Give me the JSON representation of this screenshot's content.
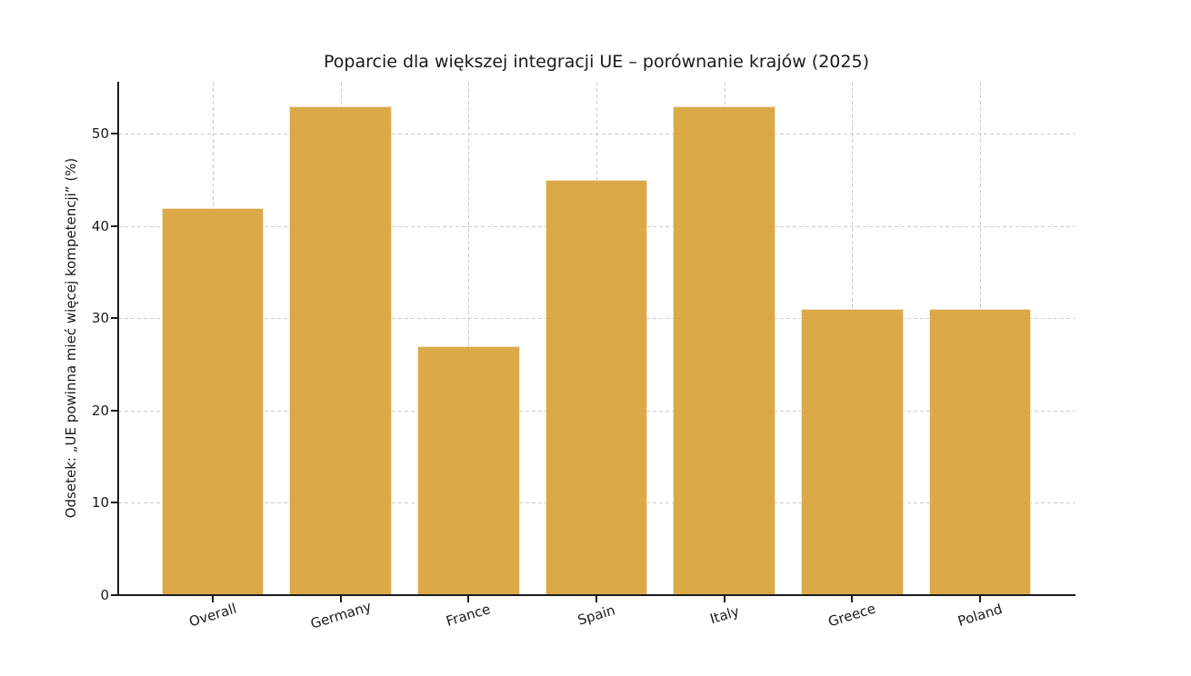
{
  "figure": {
    "background": "#ffffff"
  },
  "chart_data": {
    "type": "bar",
    "title": "Poparcie dla większej integracji UE – porównanie krajów (2025)",
    "xlabel": "",
    "ylabel": "Odsetek: „UE powinna mieć więcej kompetencji” (%)",
    "categories": [
      "Overall",
      "Germany",
      "France",
      "Spain",
      "Italy",
      "Greece",
      "Poland"
    ],
    "values": [
      42,
      53,
      27,
      45,
      53,
      31,
      31
    ],
    "yticks": [
      0,
      10,
      20,
      30,
      40,
      50
    ],
    "ylim": [
      0,
      55.65
    ],
    "grid": "dashed horizontal and vertical gridlines",
    "legend": "none",
    "colors": {
      "bar": "#d9a33b",
      "grid": "#cccccc",
      "spine": "#1c1c1c",
      "text": "#1a1a1a"
    }
  }
}
